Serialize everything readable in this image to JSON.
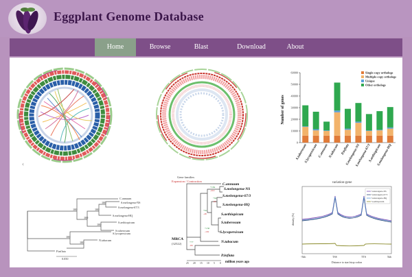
{
  "site": {
    "title": "Eggplant Genome Database",
    "logo_icon": "eggplant-logo-icon"
  },
  "nav": {
    "items": [
      {
        "label": "Home",
        "active": true
      },
      {
        "label": "Browse",
        "active": false
      },
      {
        "label": "Blast",
        "active": false
      },
      {
        "label": "Download",
        "active": false
      },
      {
        "label": "About",
        "active": false
      }
    ]
  },
  "colors": {
    "page_bg": "#b893bd",
    "navbar": "#7e4f88",
    "nav_active": "#8aa08a",
    "title": "#3a1549"
  },
  "bar_chart": {
    "ylabel": "Number of genes",
    "legend": [
      {
        "label": "Single-copy orthologs",
        "color": "#e07b39"
      },
      {
        "label": "Multiple-copy orthologs",
        "color": "#f2b36b"
      },
      {
        "label": "Unique",
        "color": "#5aa0d8"
      },
      {
        "label": "Other orthologs",
        "color": "#2fa84f"
      }
    ]
  },
  "chart_data": {
    "type": "bar",
    "ylabel": "Number of genes",
    "ylim": [
      0,
      60000
    ],
    "yticks": [
      "0",
      "10000",
      "20000",
      "30000",
      "40000",
      "50000",
      "60000"
    ],
    "categories": [
      "S.tuberosum",
      "S.lycopersicum",
      "C.annuum",
      "N.tabacum",
      "P.inflata",
      "S.melongena-NS",
      "S.melongena-67/3",
      "S.aethiopicum",
      "S.melongena-HQ"
    ],
    "series": [
      {
        "name": "Single-copy orthologs",
        "values": [
          6000,
          6000,
          6000,
          6000,
          6000,
          6000,
          6000,
          6000,
          6000
        ]
      },
      {
        "name": "Multiple-copy orthologs",
        "values": [
          7500,
          4500,
          4000,
          20000,
          5000,
          11000,
          4000,
          4500,
          6000
        ]
      },
      {
        "name": "Unique",
        "values": [
          500,
          1000,
          500,
          1500,
          1000,
          1000,
          500,
          500,
          1000
        ]
      },
      {
        "name": "Other orthologs",
        "values": [
          18000,
          15000,
          7500,
          24000,
          17000,
          16000,
          14000,
          16000,
          17500
        ]
      }
    ]
  },
  "tree_left": {
    "labels": [
      "C.annuum",
      "S.melongena-NS",
      "S.melongena-67/3",
      "S.melongena-HQ",
      "S.aethiopicum",
      "S.tuberosum",
      "S.lycopersicum",
      "N.tabacum",
      "P.inflata"
    ],
    "bootstrap": [
      "100",
      "100",
      "100",
      "100",
      "100",
      "100",
      "100"
    ],
    "scale": "0.050"
  },
  "tree_mid": {
    "legend": [
      "Gene families",
      "Expansion / Contraction"
    ],
    "root_label": "MRCA",
    "root_value": "(32522)",
    "labels": [
      "C.annuum",
      "S.melongena-NS",
      "S.melongena-67/3",
      "S.melongena-HQ",
      "S.aethiopicum",
      "S.tuberosum",
      "S.lycopersicum",
      "N.tabacum",
      "P.inflata"
    ],
    "axis_label": "million years ago",
    "axis_ticks": [
      "25",
      "20",
      "15",
      "10",
      "5",
      "0"
    ]
  },
  "line_chart": {
    "title": "variation-gene",
    "xlabel": "Distance to start/stop codon",
    "ylabel": "density (%)",
    "xticks": [
      "-5kb",
      "TSS",
      "TTS",
      "5kb"
    ],
    "legend": [
      "S.melongena-NS",
      "S.melongena-67/3",
      "S.melongena-HQ",
      "S.aethiopicum"
    ]
  }
}
